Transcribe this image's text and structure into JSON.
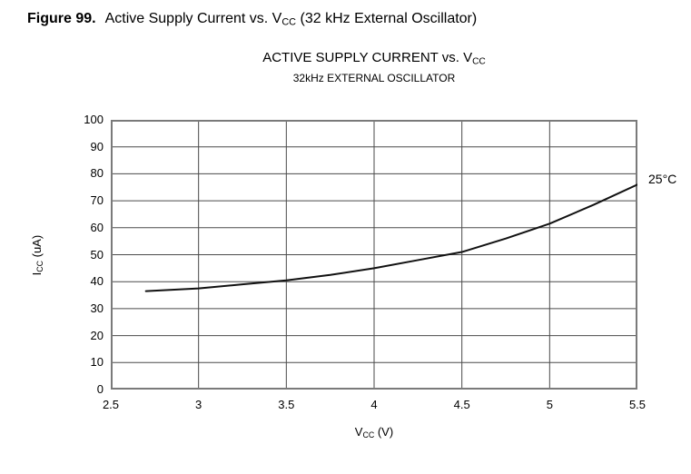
{
  "figure_caption": {
    "label": "Figure 99.",
    "title_pre_sub": "Active Supply Current vs. V",
    "title_sub": "CC",
    "title_post_sub": " (32 kHz External Oscillator)"
  },
  "chart": {
    "title_pre_sub": "ACTIVE SUPPLY CURRENT vs. V",
    "title_sub": "CC",
    "subtitle": "32kHz EXTERNAL OSCILLATOR",
    "y_axis_label_pre_sub": "I",
    "y_axis_label_sub": "CC",
    "y_axis_label_post_sub": " (uA)",
    "x_axis_label_pre_sub": "V",
    "x_axis_label_sub": "CC",
    "x_axis_label_post_sub": " (V)",
    "series_label": "25°C"
  },
  "colors": {
    "frame": "#7a7a7a",
    "gridline": "#4a4a4a",
    "curve": "#111111",
    "text": "#000000",
    "background": "#ffffff"
  },
  "chart_data": {
    "type": "line",
    "title": "ACTIVE SUPPLY CURRENT vs. VCC",
    "subtitle": "32kHz EXTERNAL OSCILLATOR",
    "xlabel": "VCC (V)",
    "ylabel": "ICC (uA)",
    "xlim": [
      2.5,
      5.5
    ],
    "ylim": [
      0,
      100
    ],
    "xticks": [
      2.5,
      3,
      3.5,
      4,
      4.5,
      5,
      5.5
    ],
    "yticks": [
      0,
      10,
      20,
      30,
      40,
      50,
      60,
      70,
      80,
      90,
      100
    ],
    "grid": true,
    "legend_position": "right-outside",
    "series": [
      {
        "name": "25°C",
        "x": [
          2.7,
          3.0,
          3.25,
          3.5,
          3.75,
          4.0,
          4.25,
          4.5,
          4.75,
          5.0,
          5.25,
          5.5
        ],
        "y": [
          36.5,
          37.5,
          39,
          40.5,
          42.5,
          45,
          48,
          51,
          56,
          61.5,
          68.5,
          76
        ]
      }
    ]
  }
}
